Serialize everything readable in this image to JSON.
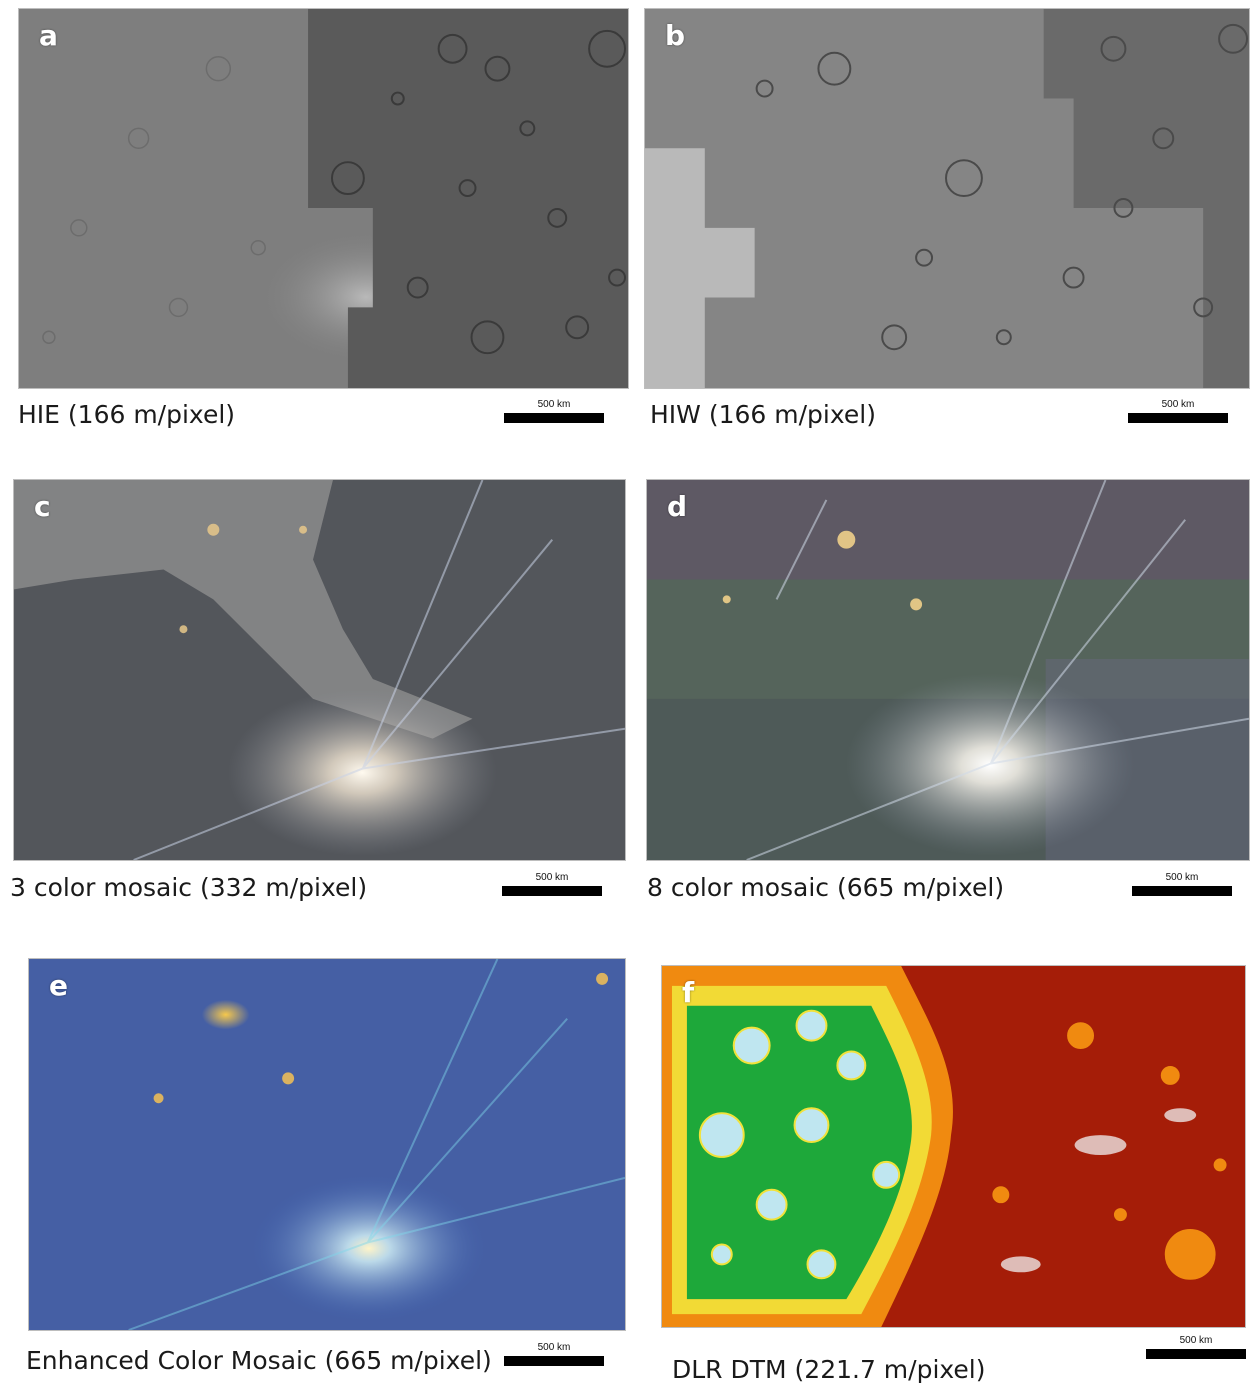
{
  "panels": [
    {
      "letter": "a",
      "caption": "HIE (166 m/pixel)",
      "scale_label": "500 km"
    },
    {
      "letter": "b",
      "caption": "HIW (166 m/pixel)",
      "scale_label": "500 km"
    },
    {
      "letter": "c",
      "caption": "3 color mosaic (332 m/pixel)",
      "scale_label": "500 km"
    },
    {
      "letter": "d",
      "caption": "8 color mosaic (665 m/pixel)",
      "scale_label": "500 km"
    },
    {
      "letter": "e",
      "caption": "Enhanced Color Mosaic (665 m/pixel)",
      "scale_label": "500 km"
    },
    {
      "letter": "f",
      "caption": "DLR DTM (221.7 m/pixel)",
      "scale_label": "500 km"
    }
  ],
  "palette": {
    "grayscale_base": "#7f7f7f",
    "grayscale_dark": "#4a4a4a",
    "color_mosaic_base": "#4d5a52",
    "enhanced_blue": "#3a5fb0",
    "enhanced_cyan": "#6fd3e6",
    "enhanced_yellow": "#f2c34a",
    "dtm_green": "#1ea83a",
    "dtm_red": "#a51d08",
    "dtm_orange": "#f08a10",
    "dtm_yellow": "#f2e23a",
    "dtm_white": "#f2f2f2",
    "dtm_pale_blue": "#bfe6f0"
  }
}
